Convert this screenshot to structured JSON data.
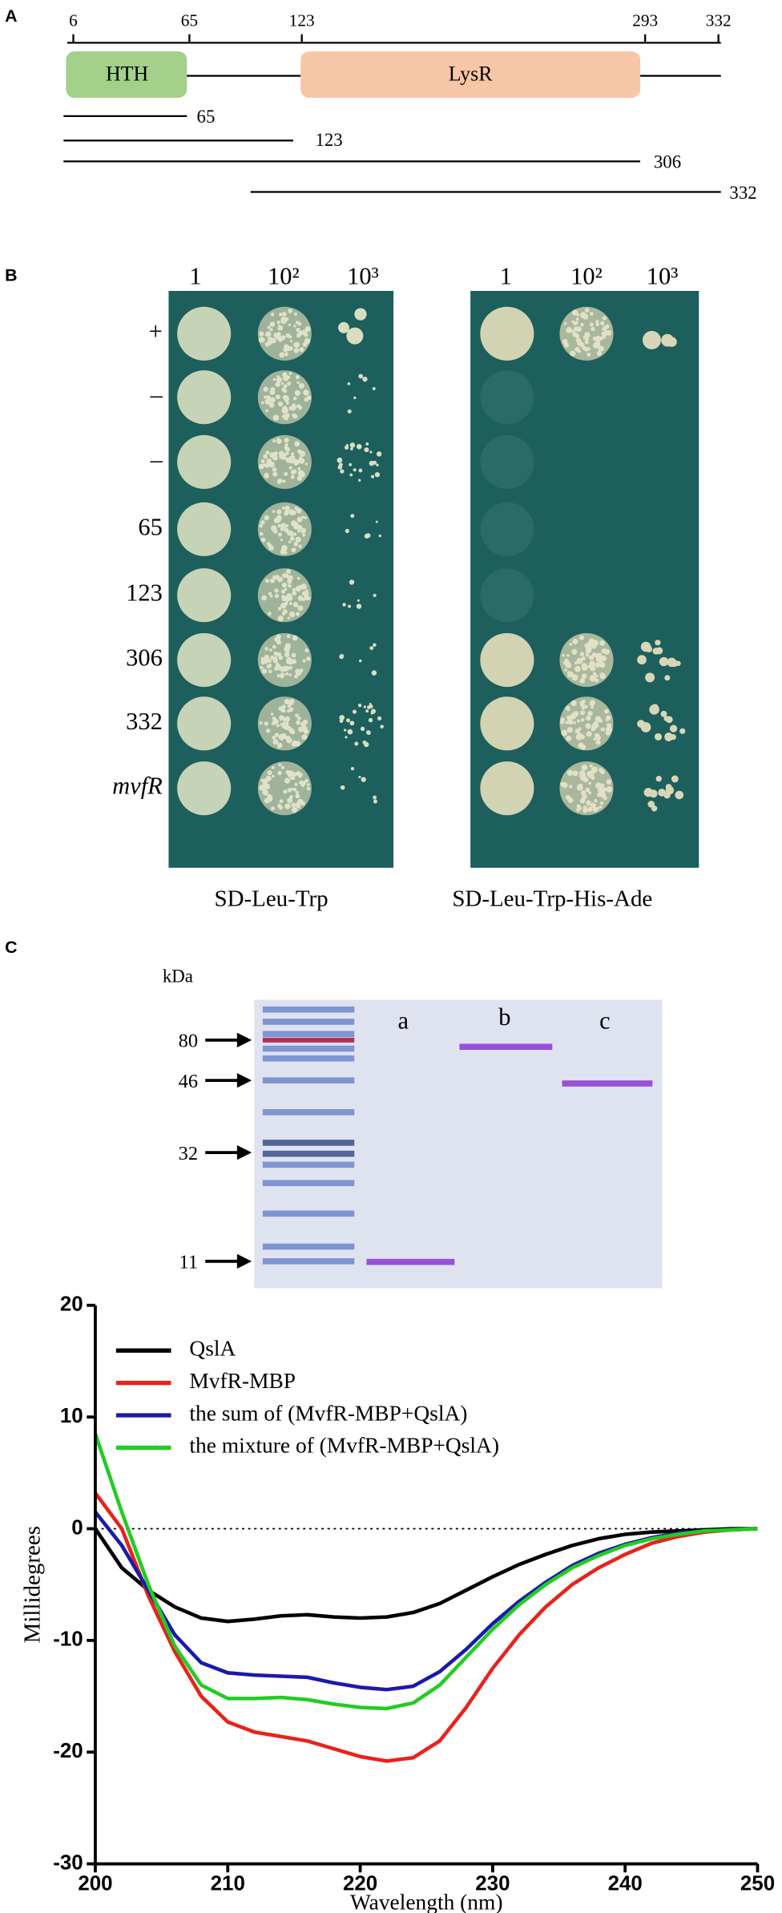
{
  "panel_labels": [
    "A",
    "B",
    "C"
  ],
  "domain_map": {
    "ticks": [
      "6",
      "65",
      "123",
      "293",
      "332"
    ],
    "domains": [
      "HTH",
      "LysR"
    ],
    "fragments": [
      "65",
      "123",
      "306",
      "332"
    ]
  },
  "y2h": {
    "dilutions": [
      "1",
      "10²",
      "10³"
    ],
    "rows": [
      "+",
      "–",
      "–",
      "65",
      "123",
      "306",
      "332",
      "mvfR"
    ],
    "media": [
      "SD-Leu-Trp",
      "SD-Leu-Trp-His-Ade"
    ]
  },
  "gel": {
    "unit": "kDa",
    "markers": [
      "80",
      "46",
      "32",
      "11"
    ],
    "lanes": [
      "a",
      "b",
      "c"
    ]
  },
  "chart_data": {
    "type": "line",
    "xlabel": "Wavelength (nm)",
    "ylabel": "Millidegrees",
    "x": [
      200,
      202,
      204,
      206,
      208,
      210,
      212,
      214,
      216,
      218,
      220,
      222,
      224,
      226,
      228,
      230,
      232,
      234,
      236,
      238,
      240,
      242,
      244,
      246,
      248,
      250
    ],
    "series": [
      {
        "name": "QslA",
        "color": "#000000",
        "values": [
          0,
          -3.5,
          -5.5,
          -7,
          -8,
          -8.3,
          -8.1,
          -7.8,
          -7.7,
          -7.9,
          -8,
          -7.9,
          -7.5,
          -6.7,
          -5.5,
          -4.3,
          -3.2,
          -2.3,
          -1.5,
          -0.9,
          -0.5,
          -0.3,
          -0.2,
          -0.1,
          0,
          0
        ]
      },
      {
        "name": "MvfR-MBP",
        "color": "#e8221c",
        "values": [
          3.2,
          0,
          -6,
          -11,
          -15,
          -17.3,
          -18.2,
          -18.6,
          -19,
          -19.7,
          -20.4,
          -20.8,
          -20.5,
          -19,
          -16,
          -12.5,
          -9.5,
          -7,
          -5,
          -3.5,
          -2.3,
          -1.3,
          -0.7,
          -0.3,
          -0.1,
          0
        ]
      },
      {
        "name": "the sum of (MvfR-MBP+QslA)",
        "color": "#1a1aaa",
        "values": [
          1.5,
          -1.5,
          -5.5,
          -9.5,
          -12,
          -12.9,
          -13.1,
          -13.2,
          -13.3,
          -13.8,
          -14.2,
          -14.4,
          -14.1,
          -12.8,
          -10.8,
          -8.5,
          -6.5,
          -4.8,
          -3.3,
          -2.2,
          -1.4,
          -0.8,
          -0.4,
          -0.2,
          -0.1,
          0
        ]
      },
      {
        "name": "the mixture of (MvfR-MBP+QslA)",
        "color": "#22cc22",
        "values": [
          8.5,
          1.5,
          -5,
          -10.5,
          -14,
          -15.2,
          -15.2,
          -15.1,
          -15.3,
          -15.7,
          -16,
          -16.1,
          -15.6,
          -14,
          -11.5,
          -9,
          -6.8,
          -5,
          -3.5,
          -2.4,
          -1.5,
          -0.9,
          -0.5,
          -0.2,
          -0.1,
          0
        ]
      }
    ],
    "xlim": [
      200,
      250
    ],
    "ylim": [
      -30,
      20
    ],
    "xticks": [
      200,
      210,
      220,
      230,
      240,
      250
    ],
    "yticks": [
      -30,
      -20,
      -10,
      0,
      10,
      20
    ],
    "zero_line": true,
    "legend": "upper left"
  }
}
